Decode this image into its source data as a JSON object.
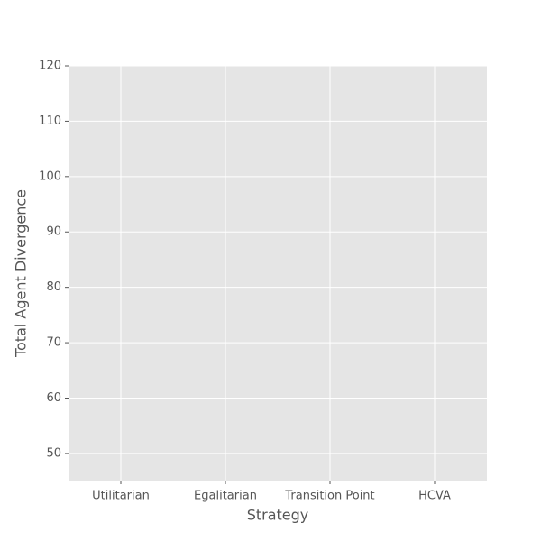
{
  "chart_data": {
    "type": "bar",
    "x_label": "Strategy",
    "y_label": "Total Agent Divergence",
    "categories": [
      "Utilitarian",
      "Egalitarian",
      "Transition Point",
      "HCVA"
    ],
    "ylim": [
      45.1,
      120
    ],
    "yticks": [
      50,
      60,
      70,
      80,
      90,
      100,
      110,
      120
    ],
    "grid": true
  }
}
